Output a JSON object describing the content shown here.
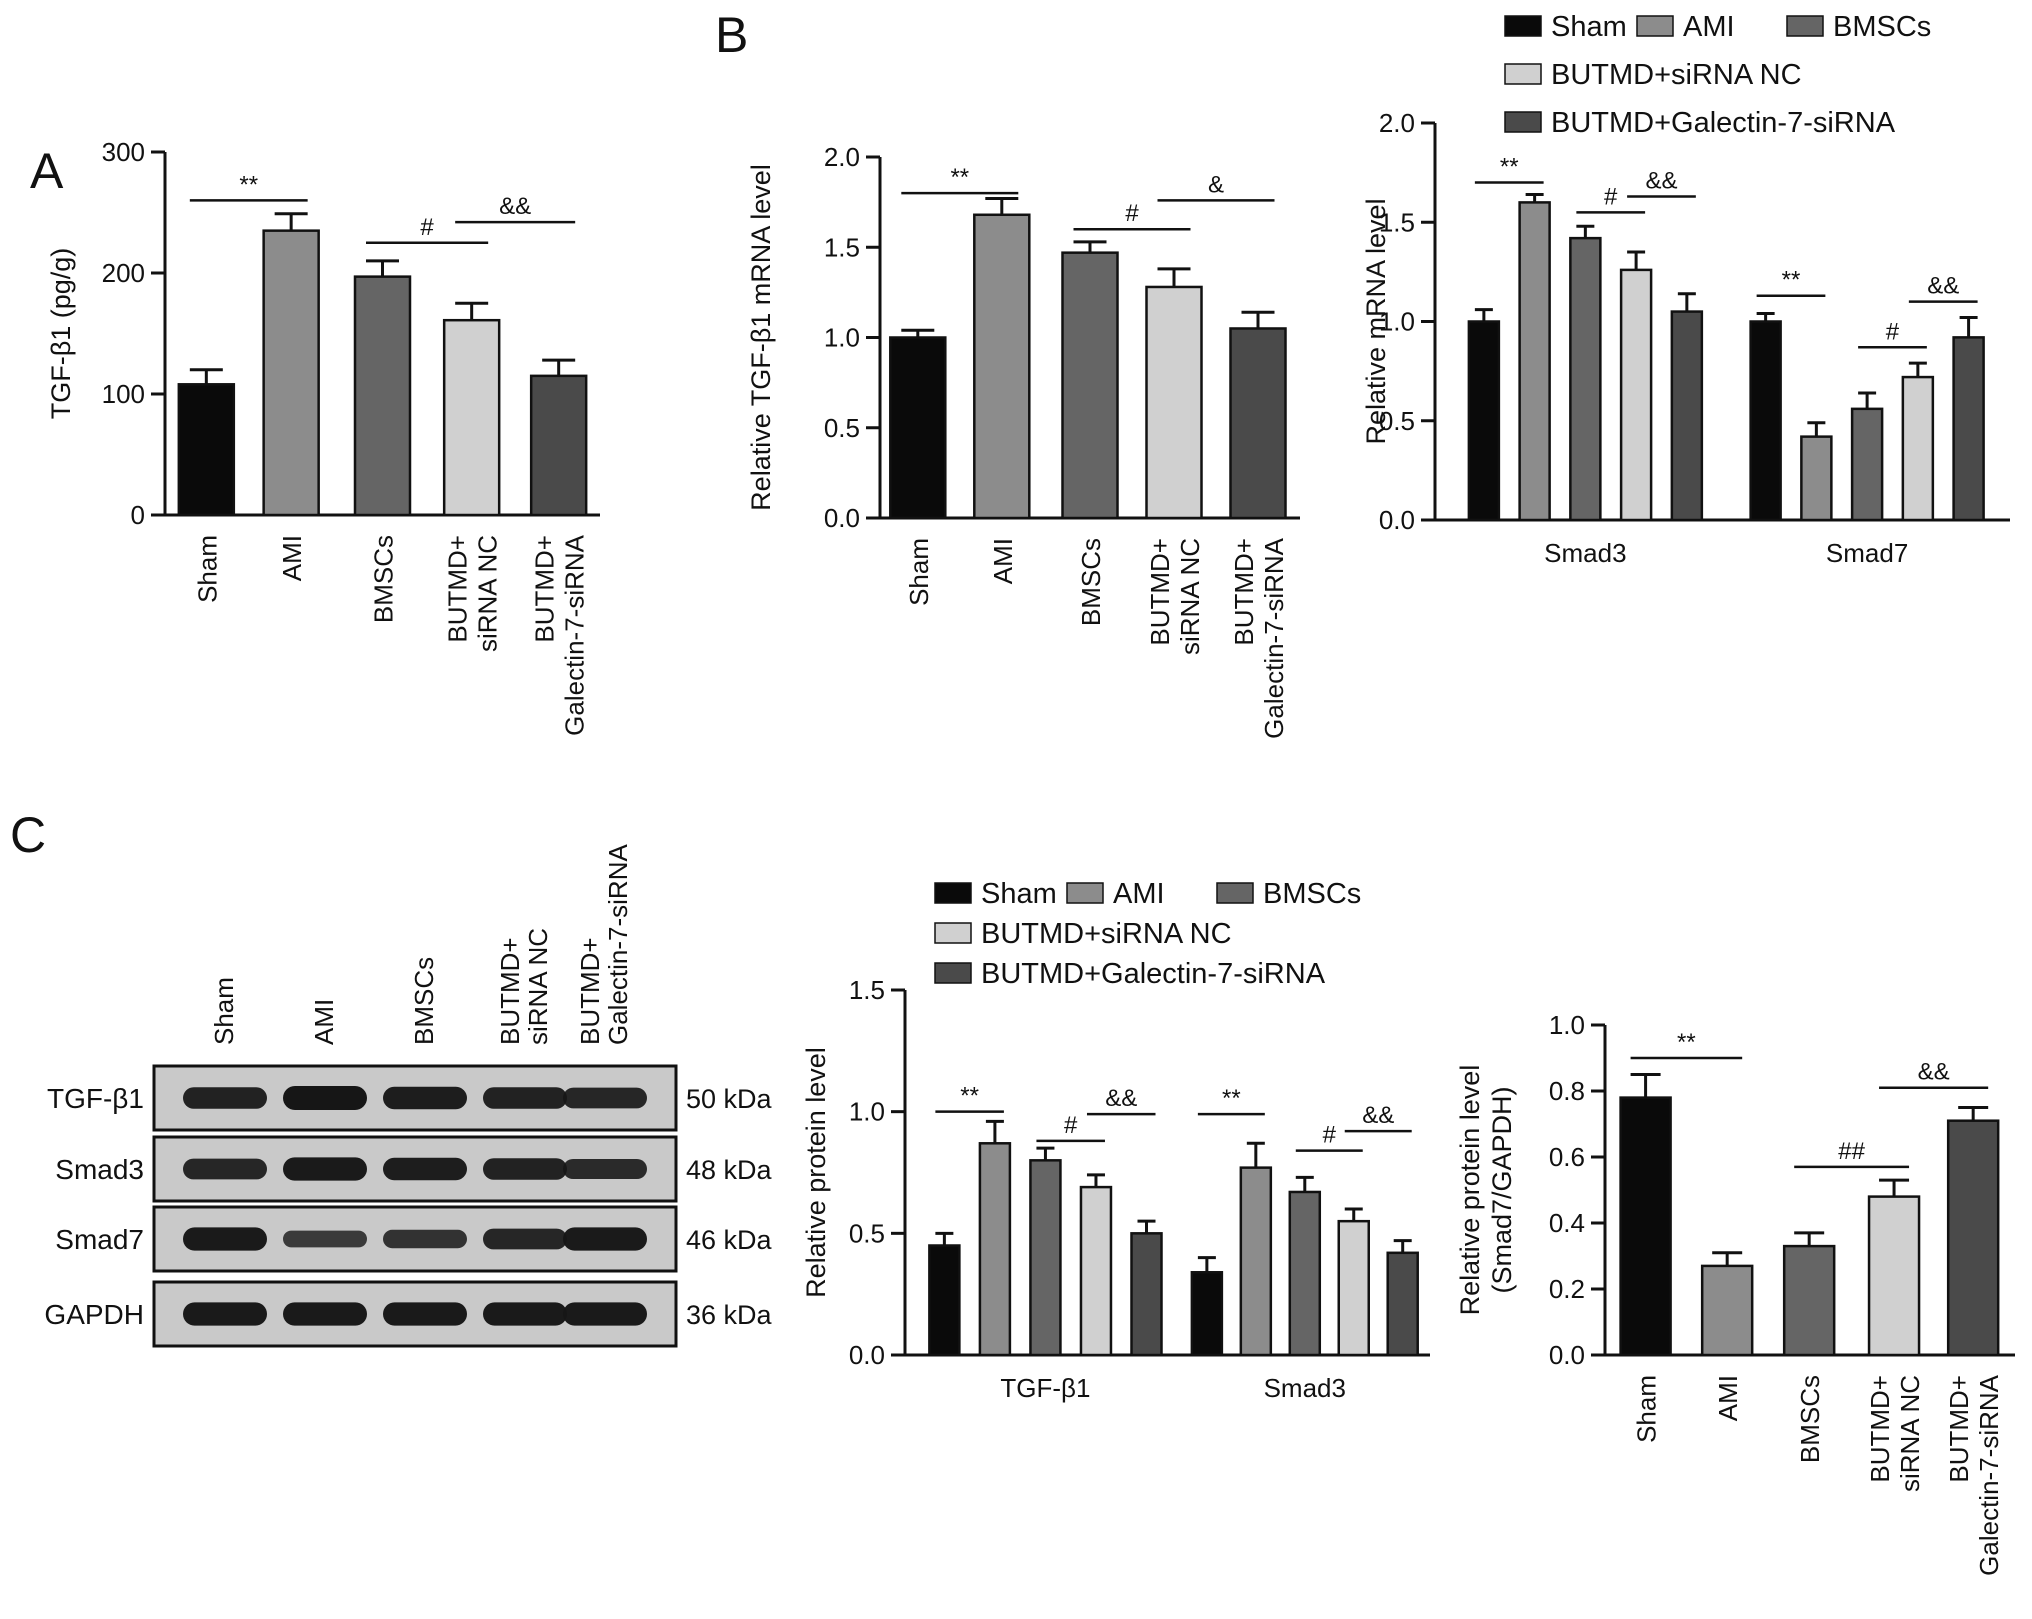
{
  "figure": {
    "panel_letters": [
      "A",
      "B",
      "C"
    ],
    "colors": {
      "Sham": "#0a0a0a",
      "AMI": "#8c8c8c",
      "BMSCs": "#656565",
      "BUTMD+siRNA NC": "#d0d0d0",
      "BUTMD+Galectin-7-siRNA": "#4a4a4a",
      "axis": "#111111",
      "blot_bg": "#c9c9c9",
      "band": "#161616"
    },
    "legend": {
      "labels": [
        "Sham",
        "AMI",
        "BMSCs",
        "BUTMD+siRNA NC",
        "BUTMD+Galectin-7-siRNA"
      ]
    },
    "western_blot": {
      "lane_labels": [
        "Sham",
        "AMI",
        "BMSCs",
        "BUTMD+\nsiRNA NC",
        "BUTMD+\nGalectin-7-siRNA"
      ],
      "rows": [
        {
          "protein": "TGF-β1",
          "kda": "50 kDa",
          "intensity": [
            0.85,
            1.0,
            0.9,
            0.85,
            0.8
          ]
        },
        {
          "protein": "Smad3",
          "kda": "48 kDa",
          "intensity": [
            0.8,
            0.95,
            0.9,
            0.85,
            0.75
          ]
        },
        {
          "protein": "Smad7",
          "kda": "46 kDa",
          "intensity": [
            0.95,
            0.55,
            0.65,
            0.8,
            0.95
          ]
        },
        {
          "protein": "GAPDH",
          "kda": "36 kDa",
          "intensity": [
            0.95,
            0.95,
            0.95,
            0.95,
            0.95
          ]
        }
      ]
    }
  },
  "chart_data": [
    {
      "id": "A",
      "type": "bar",
      "ylabel": "TGF-β1 (pg/g)",
      "ylim": [
        0,
        300
      ],
      "yticks": [
        0,
        100,
        200,
        300
      ],
      "categories": [
        "Sham",
        "AMI",
        "BMSCs",
        "BUTMD+\nsiRNA NC",
        "BUTMD+\nGalectin-7-siRNA"
      ],
      "values": [
        108,
        235,
        197,
        161,
        115
      ],
      "errors": [
        12,
        14,
        13,
        14,
        13
      ],
      "significance": [
        {
          "label": "**",
          "from": 0,
          "to": 1,
          "y": 260
        },
        {
          "label": "#",
          "from": 2,
          "to": 3,
          "y": 225
        },
        {
          "label": "&&",
          "from": 3,
          "to": 4,
          "y": 242
        }
      ]
    },
    {
      "id": "B1",
      "type": "bar",
      "ylabel": "Relative TGF-β1 mRNA level",
      "ylim": [
        0,
        2.0
      ],
      "yticks": [
        "0.0",
        "0.5",
        "1.0",
        "1.5",
        "2.0"
      ],
      "categories": [
        "Sham",
        "AMI",
        "BMSCs",
        "BUTMD+\nsiRNA NC",
        "BUTMD+\nGalectin-7-siRNA"
      ],
      "values": [
        1.0,
        1.68,
        1.47,
        1.28,
        1.05
      ],
      "errors": [
        0.04,
        0.09,
        0.06,
        0.1,
        0.09
      ],
      "significance": [
        {
          "label": "**",
          "from": 0,
          "to": 1,
          "y": 1.8
        },
        {
          "label": "#",
          "from": 2,
          "to": 3,
          "y": 1.6
        },
        {
          "label": "&",
          "from": 3,
          "to": 4,
          "y": 1.76
        }
      ]
    },
    {
      "id": "B2",
      "type": "bar",
      "ylabel": "Relative mRNA level",
      "ylim": [
        0,
        2.0
      ],
      "yticks": [
        "0.0",
        "0.5",
        "1.0",
        "1.5",
        "2.0"
      ],
      "categories": [
        "Smad3",
        "Smad7"
      ],
      "series": [
        {
          "name": "Sham",
          "values": [
            1.0,
            1.0
          ],
          "errors": [
            0.06,
            0.04
          ]
        },
        {
          "name": "AMI",
          "values": [
            1.6,
            0.42
          ],
          "errors": [
            0.04,
            0.07
          ]
        },
        {
          "name": "BMSCs",
          "values": [
            1.42,
            0.56
          ],
          "errors": [
            0.06,
            0.08
          ]
        },
        {
          "name": "BUTMD+siRNA NC",
          "values": [
            1.26,
            0.72
          ],
          "errors": [
            0.09,
            0.07
          ]
        },
        {
          "name": "BUTMD+Galectin-7-siRNA",
          "values": [
            1.05,
            0.92
          ],
          "errors": [
            0.09,
            0.1
          ]
        }
      ],
      "significance": [
        {
          "label": "**",
          "group": 0,
          "from": 0,
          "to": 1,
          "y": 1.7
        },
        {
          "label": "#",
          "group": 0,
          "from": 2,
          "to": 3,
          "y": 1.55
        },
        {
          "label": "&&",
          "group": 0,
          "from": 3,
          "to": 4,
          "y": 1.63
        },
        {
          "label": "**",
          "group": 1,
          "from": 0,
          "to": 1,
          "y": 1.13
        },
        {
          "label": "#",
          "group": 1,
          "from": 2,
          "to": 3,
          "y": 0.87
        },
        {
          "label": "&&",
          "group": 1,
          "from": 3,
          "to": 4,
          "y": 1.1
        }
      ]
    },
    {
      "id": "C1",
      "type": "bar",
      "ylabel": "Relative protein level",
      "ylim": [
        0,
        1.5
      ],
      "yticks": [
        "0.0",
        "0.5",
        "1.0",
        "1.5"
      ],
      "categories": [
        "TGF-β1",
        "Smad3"
      ],
      "series": [
        {
          "name": "Sham",
          "values": [
            0.45,
            0.34
          ],
          "errors": [
            0.05,
            0.06
          ]
        },
        {
          "name": "AMI",
          "values": [
            0.87,
            0.77
          ],
          "errors": [
            0.09,
            0.1
          ]
        },
        {
          "name": "BMSCs",
          "values": [
            0.8,
            0.67
          ],
          "errors": [
            0.05,
            0.06
          ]
        },
        {
          "name": "BUTMD+siRNA NC",
          "values": [
            0.69,
            0.55
          ],
          "errors": [
            0.05,
            0.05
          ]
        },
        {
          "name": "BUTMD+Galectin-7-siRNA",
          "values": [
            0.5,
            0.42
          ],
          "errors": [
            0.05,
            0.05
          ]
        }
      ],
      "significance": [
        {
          "label": "**",
          "group": 0,
          "from": 0,
          "to": 1,
          "y": 1.0
        },
        {
          "label": "#",
          "group": 0,
          "from": 2,
          "to": 3,
          "y": 0.88
        },
        {
          "label": "&&",
          "group": 0,
          "from": 3,
          "to": 4,
          "y": 0.99
        },
        {
          "label": "**",
          "group": 1,
          "from": 0,
          "to": 1,
          "y": 0.99
        },
        {
          "label": "#",
          "group": 1,
          "from": 2,
          "to": 3,
          "y": 0.84
        },
        {
          "label": "&&",
          "group": 1,
          "from": 3,
          "to": 4,
          "y": 0.92
        }
      ]
    },
    {
      "id": "C2",
      "type": "bar",
      "ylabel": "Relative protein level\n(Smad7/GAPDH)",
      "ylim": [
        0,
        1.0
      ],
      "yticks": [
        "0.0",
        "0.2",
        "0.4",
        "0.6",
        "0.8",
        "1.0"
      ],
      "categories": [
        "Sham",
        "AMI",
        "BMSCs",
        "BUTMD+\nsiRNA NC",
        "BUTMD+\nGalectin-7-siRNA"
      ],
      "values": [
        0.78,
        0.27,
        0.33,
        0.48,
        0.71
      ],
      "errors": [
        0.07,
        0.04,
        0.04,
        0.05,
        0.04
      ],
      "significance": [
        {
          "label": "**",
          "from": 0,
          "to": 1,
          "y": 0.9
        },
        {
          "label": "##",
          "from": 2,
          "to": 3,
          "y": 0.57
        },
        {
          "label": "&&",
          "from": 3,
          "to": 4,
          "y": 0.81
        }
      ]
    }
  ]
}
